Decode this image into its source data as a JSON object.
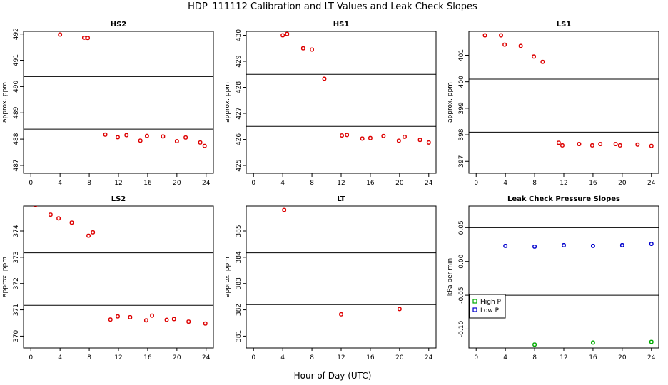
{
  "figure": {
    "title": "HDP_111112  Calibration and LT Values and Leak Check Slopes",
    "xlabel": "Hour of Day (UTC)"
  },
  "chart_data": [
    {
      "type": "scatter",
      "title": "HS2",
      "ylabel": "approx. ppm",
      "xlim": [
        -1,
        25
      ],
      "ylim": [
        486.7,
        492.1
      ],
      "xticks": [
        0,
        4,
        8,
        12,
        16,
        20,
        24
      ],
      "yticks": [
        487,
        488,
        489,
        490,
        491,
        492
      ],
      "hlines": [
        490.38,
        488.38
      ],
      "color": "#dd0000",
      "x": [
        4.0,
        7.3,
        7.8,
        10.2,
        11.9,
        13.1,
        15.0,
        15.9,
        18.1,
        20.0,
        21.2,
        23.2,
        23.8
      ],
      "y": [
        491.98,
        491.86,
        491.85,
        488.17,
        488.07,
        488.15,
        487.94,
        488.12,
        488.1,
        487.92,
        488.06,
        487.87,
        487.74
      ]
    },
    {
      "type": "scatter",
      "title": "HS1",
      "ylabel": "approx. ppm",
      "xlim": [
        -1,
        25
      ],
      "ylim": [
        424.7,
        430.15
      ],
      "xticks": [
        0,
        4,
        8,
        12,
        16,
        20,
        24
      ],
      "yticks": [
        425,
        426,
        427,
        428,
        429,
        430
      ],
      "hlines": [
        428.5,
        426.5
      ],
      "color": "#dd0000",
      "x": [
        4.0,
        4.6,
        6.8,
        8.0,
        9.7,
        12.1,
        12.8,
        14.9,
        16.0,
        17.8,
        19.9,
        20.7,
        22.8,
        24.0
      ],
      "y": [
        430.0,
        430.05,
        429.5,
        429.45,
        428.33,
        426.15,
        426.17,
        426.03,
        426.05,
        426.13,
        425.95,
        426.1,
        425.98,
        425.88
      ]
    },
    {
      "type": "scatter",
      "title": "LS1",
      "ylabel": "approx. ppm",
      "xlim": [
        -1,
        25
      ],
      "ylim": [
        396.55,
        401.9
      ],
      "xticks": [
        0,
        4,
        8,
        12,
        16,
        20,
        24
      ],
      "yticks": [
        397,
        398,
        399,
        400,
        401
      ],
      "hlines": [
        400.1,
        398.1
      ],
      "color": "#dd0000",
      "x": [
        1.2,
        3.4,
        3.9,
        6.1,
        7.9,
        9.1,
        11.3,
        11.8,
        14.1,
        15.9,
        17.0,
        19.1,
        19.7,
        22.1,
        24.0
      ],
      "y": [
        401.75,
        401.75,
        401.4,
        401.35,
        400.95,
        400.75,
        397.7,
        397.6,
        397.65,
        397.6,
        397.65,
        397.65,
        397.6,
        397.63,
        397.58
      ]
    },
    {
      "type": "scatter",
      "title": "LS2",
      "ylabel": "approx. ppm",
      "xlim": [
        -1,
        25
      ],
      "ylim": [
        369.55,
        374.95
      ],
      "xticks": [
        0,
        4,
        8,
        12,
        16,
        20,
        24
      ],
      "yticks": [
        370,
        371,
        372,
        373,
        374
      ],
      "hlines": [
        373.17,
        371.17
      ],
      "color": "#dd0000",
      "x": [
        0.6,
        2.7,
        3.8,
        5.6,
        7.9,
        8.5,
        10.9,
        11.9,
        13.6,
        15.8,
        16.6,
        18.6,
        19.6,
        21.6,
        23.9
      ],
      "y": [
        374.98,
        374.62,
        374.48,
        374.32,
        373.82,
        373.95,
        370.63,
        370.75,
        370.72,
        370.6,
        370.78,
        370.62,
        370.65,
        370.55,
        370.48
      ]
    },
    {
      "type": "scatter",
      "title": "LT",
      "ylabel": "approx. ppm",
      "xlim": [
        -1,
        25
      ],
      "ylim": [
        380.55,
        385.95
      ],
      "xticks": [
        0,
        4,
        8,
        12,
        16,
        20,
        24
      ],
      "yticks": [
        381,
        382,
        383,
        384,
        385
      ],
      "hlines": [
        384.17,
        382.2
      ],
      "color": "#dd0000",
      "x": [
        4.2,
        12.0,
        20.0
      ],
      "y": [
        385.8,
        381.83,
        382.03
      ]
    },
    {
      "type": "scatter",
      "title": "Leak Check Pressure Slopes",
      "ylabel": "kPa per min",
      "xlim": [
        -1,
        25
      ],
      "ylim": [
        -0.128,
        0.082
      ],
      "xticks": [
        0,
        4,
        8,
        12,
        16,
        20,
        24
      ],
      "yticks": [
        -0.1,
        -0.05,
        0.0,
        0.05
      ],
      "ytick_labels": [
        "-0.10",
        "-0.05",
        "0.00",
        "0.05"
      ],
      "hlines": [
        0.05,
        -0.05
      ],
      "legend": {
        "placement": "left",
        "entries": [
          "High P",
          "Low P"
        ]
      },
      "series": [
        {
          "name": "High P",
          "color": "#00aa00",
          "x": [
            8,
            16,
            24
          ],
          "y": [
            -0.123,
            -0.12,
            -0.119
          ]
        },
        {
          "name": "Low P",
          "color": "#0000cc",
          "x": [
            4,
            8,
            12,
            16,
            20,
            24
          ],
          "y": [
            0.023,
            0.022,
            0.024,
            0.023,
            0.024,
            0.026
          ]
        }
      ]
    }
  ]
}
